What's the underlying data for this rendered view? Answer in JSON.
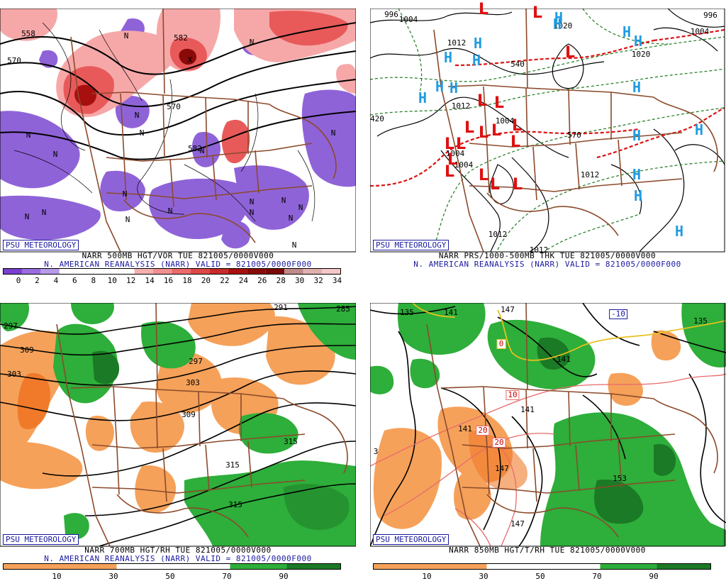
{
  "colors": {
    "vort_neg": "#8f63d8",
    "vort_pos_light": "#f6a8a8",
    "vort_pos_mid": "#e85a5a",
    "vort_pos_dark": "#a81010",
    "rh_dry": "#f5a15a",
    "rh_moist": "#2eae3a",
    "rh_very_moist": "#1b7a25",
    "states": "#8b4a2b",
    "contour": "#000000",
    "low_red": "#dd1111",
    "high_blue": "#1f9be0",
    "badge_blue": "#1a1aa0"
  },
  "panels": [
    {
      "badge": "PSU METEOROLOGY",
      "caption1": "NARR 500MB HGT/VOR TUE 821005/0000V000",
      "caption2": "N. AMERICAN REANALYSIS (NARR) VALID = 821005/0000F000",
      "colorbar": {
        "labels": [
          "0",
          "2",
          "4",
          "6",
          "8",
          "10",
          "12",
          "14",
          "16",
          "18",
          "20",
          "22",
          "24",
          "26",
          "28",
          "30",
          "32",
          "34"
        ],
        "colors": [
          "#7b3fd0",
          "#9a6ce0",
          "#b79ae8",
          "#ffffff",
          "#ffffff",
          "#ffffff",
          "#ffffff",
          "#f7b0b0",
          "#f29090",
          "#ec6a6a",
          "#e04848",
          "#c82a2a",
          "#a81010",
          "#8a0a0a",
          "#7a0808",
          "#c08a8a",
          "#e2b0b0",
          "#f5c7c7"
        ]
      },
      "contour_labels": [
        "558",
        "570",
        "582",
        "570",
        "582"
      ],
      "vort_markers": [
        "N",
        "N",
        "N",
        "N",
        "N",
        "N",
        "N",
        "N",
        "N",
        "N",
        "N",
        "N",
        "N",
        "N",
        "N",
        "N",
        "N",
        "N",
        "N",
        "X"
      ]
    },
    {
      "badge": "PSU METEOROLOGY",
      "caption1": "NARR PRS/1000-500MB THK TUE 821005/0000V000",
      "caption2": "N. AMERICAN REANALYSIS (NARR) VALID = 821005/0000F000",
      "contour_labels": [
        "996",
        "1004",
        "1012",
        "1020",
        "1020",
        "1012",
        "1004",
        "1004",
        "1004",
        "1012",
        "1012",
        "1012",
        "1004",
        "996",
        "420",
        "540",
        "570"
      ],
      "lows": [
        "L",
        "L",
        "L",
        "L",
        "L",
        "L",
        "L",
        "L",
        "L",
        "L",
        "L",
        "L",
        "L",
        "L",
        "L",
        "L",
        "L"
      ],
      "highs": [
        "H",
        "H",
        "H",
        "H",
        "H",
        "H",
        "H",
        "H",
        "H",
        "H",
        "H",
        "H",
        "H",
        "H",
        "H",
        "H"
      ]
    },
    {
      "badge": "PSU METEOROLOGY",
      "caption1": "NARR 700MB HGT/RH TUE 821005/0000V000",
      "caption2": "N. AMERICAN REANALYSIS (NARR) VALID = 821005/0000F000",
      "colorbar": {
        "labels": [
          "10",
          "30",
          "50",
          "70",
          "90"
        ]
      },
      "contour_labels": [
        "291",
        "285",
        "297",
        "303",
        "309",
        "309",
        "303",
        "315",
        "315",
        "315",
        "297"
      ]
    },
    {
      "badge": "PSU METEOROLOGY",
      "caption1": "NARR 850MB HGT/T/RH TUE 821005/0000V000",
      "caption2": "",
      "colorbar": {
        "labels": [
          "10",
          "30",
          "50",
          "70",
          "90"
        ]
      },
      "contour_labels": [
        "135",
        "141",
        "141",
        "147",
        "147",
        "153",
        "141",
        "135",
        "147",
        "3",
        "141"
      ],
      "temp_labels": [
        "0",
        "10",
        "20",
        "20",
        "-10"
      ]
    }
  ]
}
